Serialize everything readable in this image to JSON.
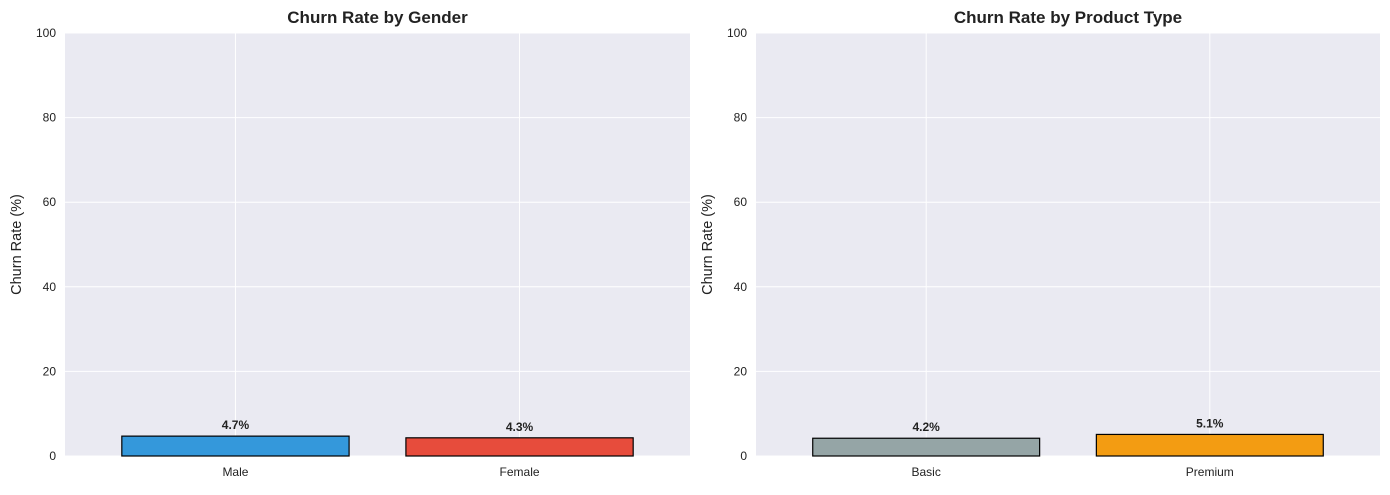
{
  "chart_data": [
    {
      "type": "bar",
      "title": "Churn Rate by Gender",
      "xlabel": "",
      "ylabel": "Churn Rate (%)",
      "categories": [
        "Male",
        "Female"
      ],
      "values": [
        4.7,
        4.3
      ],
      "data_labels": [
        "4.7%",
        "4.3%"
      ],
      "colors": [
        "#3498db",
        "#e74c3c"
      ],
      "ylim": [
        0,
        100
      ],
      "yticks": [
        0,
        20,
        40,
        60,
        80,
        100
      ],
      "grid": true,
      "legend": "none"
    },
    {
      "type": "bar",
      "title": "Churn Rate by Product Type",
      "xlabel": "",
      "ylabel": "Churn Rate (%)",
      "categories": [
        "Basic",
        "Premium"
      ],
      "values": [
        4.2,
        5.1
      ],
      "data_labels": [
        "4.2%",
        "5.1%"
      ],
      "colors": [
        "#95a5a6",
        "#f39c12"
      ],
      "ylim": [
        0,
        100
      ],
      "yticks": [
        0,
        20,
        40,
        60,
        80,
        100
      ],
      "grid": true,
      "legend": "none"
    }
  ],
  "style": {
    "plot_background": "#eaeaf2",
    "grid_color": "#ffffff",
    "bar_edge_color": "#000000"
  }
}
